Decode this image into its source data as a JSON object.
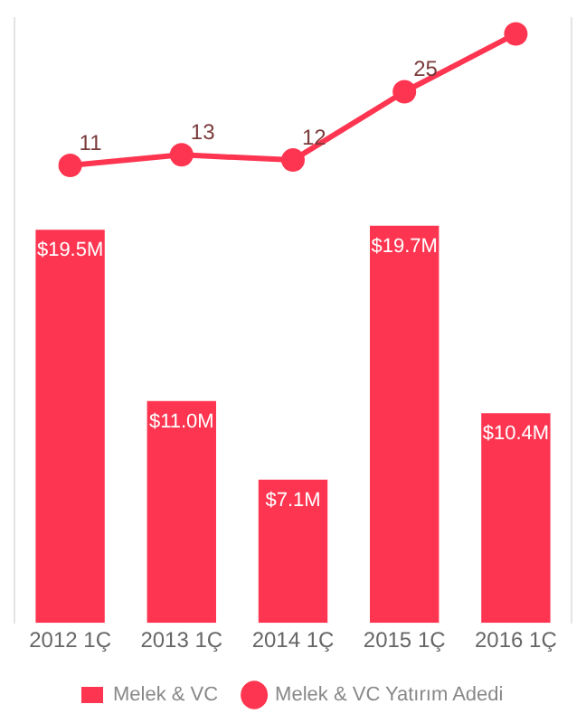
{
  "chart_data": {
    "type": "bar",
    "categories": [
      "2012 1Ç",
      "2013 1Ç",
      "2014 1Ç",
      "2015 1Ç",
      "2016 1Ç"
    ],
    "series": [
      {
        "name": "Melek & VC",
        "color": "#fe3550",
        "values": [
          19.5,
          11.0,
          7.1,
          19.7,
          10.4
        ],
        "value_labels": [
          "$19.5M",
          "$11.0M",
          "$7.1M",
          "$19.7M",
          "$10.4M"
        ]
      },
      {
        "name": "Melek & VC Yatırım Adedi",
        "type": "line",
        "axis": "y2",
        "color": "#fe3550",
        "values": [
          11,
          13,
          12,
          25,
          36
        ],
        "value_labels": [
          "11",
          "13",
          "12",
          "25",
          null
        ]
      }
    ],
    "ylim": [
      0,
      30
    ],
    "y2lim": [
      -76,
      39
    ],
    "tick_labels": "x",
    "grid": false,
    "legend": "bottom",
    "marker": "circle",
    "line_style": "solid"
  }
}
